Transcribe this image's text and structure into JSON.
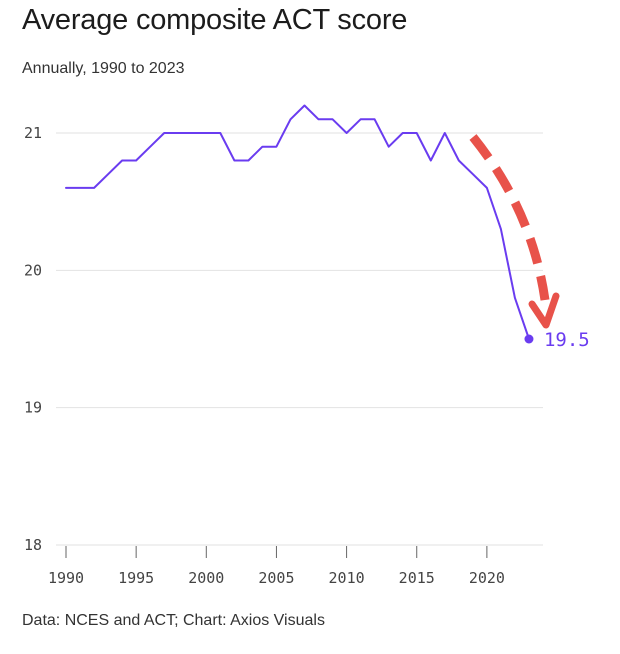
{
  "title": "Average composite ACT score",
  "subtitle": "Annually, 1990 to 2023",
  "source": "Data: NCES and ACT; Chart: Axios Visuals",
  "colors": {
    "line": "#6a3cf0",
    "arrow": "#e8524a",
    "grid": "#e2e2e2",
    "tick": "#444444"
  },
  "chart_data": {
    "type": "line",
    "title": "Average composite ACT score",
    "subtitle": "Annually, 1990 to 2023",
    "x": [
      1990,
      1991,
      1992,
      1993,
      1994,
      1995,
      1996,
      1997,
      1998,
      1999,
      2000,
      2001,
      2002,
      2003,
      2004,
      2005,
      2006,
      2007,
      2008,
      2009,
      2010,
      2011,
      2012,
      2013,
      2014,
      2015,
      2016,
      2017,
      2018,
      2019,
      2020,
      2021,
      2022,
      2023
    ],
    "series": [
      {
        "values": [
          20.6,
          20.6,
          20.6,
          20.7,
          20.8,
          20.8,
          20.9,
          21.0,
          21.0,
          21.0,
          21.0,
          21.0,
          20.8,
          20.8,
          20.9,
          20.9,
          21.1,
          21.2,
          21.1,
          21.1,
          21.0,
          21.1,
          21.1,
          20.9,
          21.0,
          21.0,
          20.8,
          21.0,
          20.8,
          20.7,
          20.6,
          20.3,
          19.8,
          19.5
        ]
      }
    ],
    "xlim": [
      1990,
      2024
    ],
    "ylim": [
      18,
      21.4
    ],
    "yticks": [
      18,
      19,
      20,
      21
    ],
    "xticks": [
      1990,
      1995,
      2000,
      2005,
      2010,
      2015,
      2020
    ],
    "end_label": "19.5",
    "annotation": "red dashed arrow pointing down toward final value",
    "grid": "horizontal",
    "legend": "none"
  }
}
